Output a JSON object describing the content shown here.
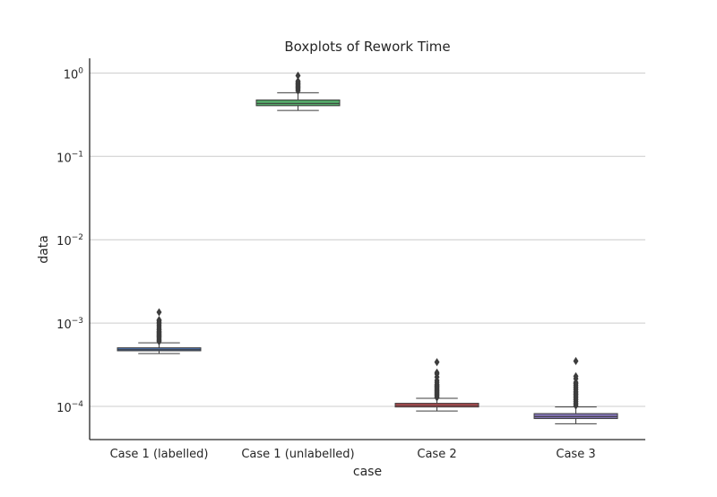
{
  "chart_data": {
    "type": "box",
    "title": "Boxplots of Rework Time",
    "xlabel": "case",
    "ylabel": "data",
    "yscale": "log",
    "ylim": [
      4e-05,
      1.5
    ],
    "yticks": [
      {
        "value": 0.0001,
        "exp": "−4"
      },
      {
        "value": 0.001,
        "exp": "−3"
      },
      {
        "value": 0.01,
        "exp": "−2"
      },
      {
        "value": 0.1,
        "exp": "−1"
      },
      {
        "value": 1,
        "exp": "0"
      }
    ],
    "ytick_base": "10",
    "grid": "horizontal",
    "categories": [
      "Case 1 (labelled)",
      "Case 1 (unlabelled)",
      "Case 2",
      "Case 3"
    ],
    "colors": [
      "#4c72b0",
      "#55a868",
      "#c44e52",
      "#8172b2"
    ],
    "boxes": [
      {
        "whisker_low": 0.00043,
        "q1": 0.000465,
        "median": 0.00048,
        "q3": 0.000505,
        "whisker_high": 0.00058,
        "outliers": [
          0.0006,
          0.00062,
          0.00064,
          0.00066,
          0.00068,
          0.0007,
          0.00072,
          0.00074,
          0.00076,
          0.00078,
          0.0008,
          0.00083,
          0.00086,
          0.0009,
          0.00094,
          0.00098,
          0.00102,
          0.00106,
          0.00109,
          0.00135
        ]
      },
      {
        "whisker_low": 0.355,
        "q1": 0.405,
        "median": 0.43,
        "q3": 0.475,
        "whisker_high": 0.58,
        "outliers": [
          0.61,
          0.63,
          0.65,
          0.67,
          0.69,
          0.71,
          0.73,
          0.75,
          0.77,
          0.8,
          0.93
        ]
      },
      {
        "whisker_low": 8.8e-05,
        "q1": 9.85e-05,
        "median": 0.000103,
        "q3": 0.000109,
        "whisker_high": 0.000125,
        "outliers": [
          0.000128,
          0.000132,
          0.000136,
          0.00014,
          0.000144,
          0.000148,
          0.000152,
          0.000156,
          0.00016,
          0.000165,
          0.00017,
          0.000175,
          0.00018,
          0.000185,
          0.000195,
          0.000205,
          0.000225,
          0.000245,
          0.000255,
          0.00034
        ]
      },
      {
        "whisker_low": 6.2e-05,
        "q1": 7.15e-05,
        "median": 7.55e-05,
        "q3": 8.2e-05,
        "whisker_high": 9.85e-05,
        "outliers": [
          0.000102,
          0.000106,
          0.00011,
          0.000115,
          0.00012,
          0.000125,
          0.00013,
          0.000135,
          0.00014,
          0.000145,
          0.00015,
          0.000158,
          0.000165,
          0.000172,
          0.00018,
          0.000188,
          0.000195,
          0.000215,
          0.00023,
          0.00035
        ]
      }
    ]
  }
}
